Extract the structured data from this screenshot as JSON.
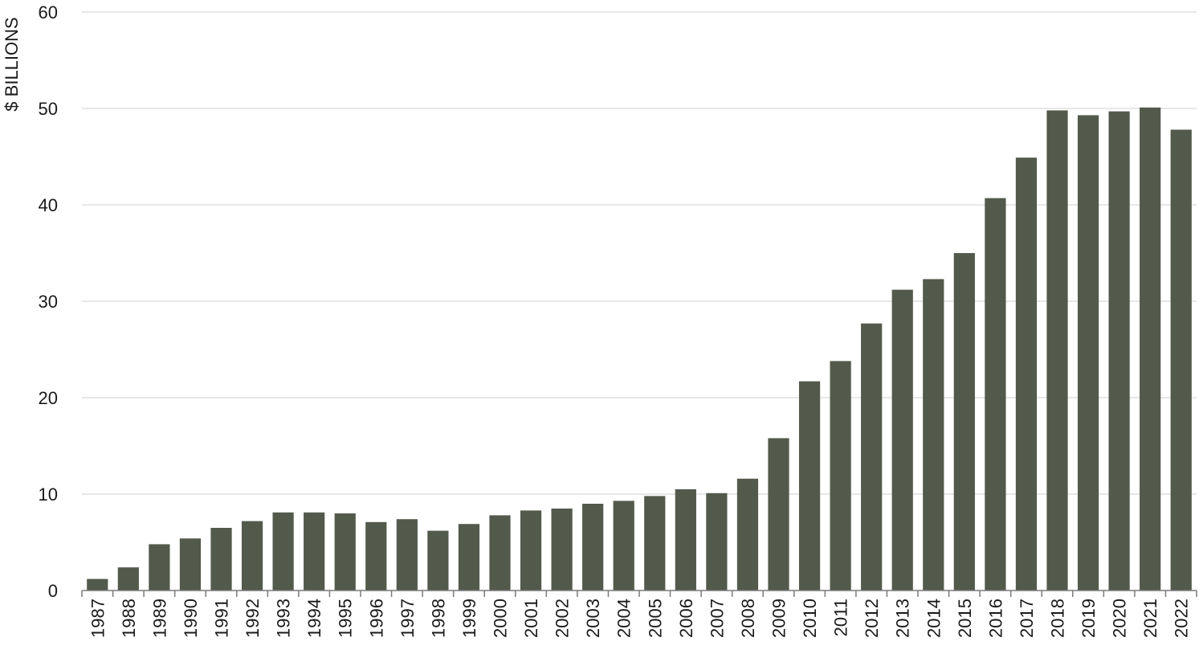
{
  "chart_data": {
    "type": "bar",
    "title": "",
    "xlabel": "",
    "ylabel": "$ BILLIONS",
    "ylim": [
      0,
      60
    ],
    "yticks": [
      0,
      10,
      20,
      30,
      40,
      50,
      60
    ],
    "grid": true,
    "bar_color": "#535a4c",
    "grid_color": "#cfcfcf",
    "axis_color": "#7a7a7a",
    "categories": [
      "1987",
      "1988",
      "1989",
      "1990",
      "1991",
      "1992",
      "1993",
      "1994",
      "1995",
      "1996",
      "1997",
      "1998",
      "1999",
      "2000",
      "2001",
      "2002",
      "2003",
      "2004",
      "2005",
      "2006",
      "2007",
      "2008",
      "2009",
      "2010",
      "2011",
      "2012",
      "2013",
      "2014",
      "2015",
      "2016",
      "2017",
      "2018",
      "2019",
      "2020",
      "2021",
      "2022"
    ],
    "values": [
      1.2,
      2.4,
      4.8,
      5.4,
      6.5,
      7.2,
      8.1,
      8.1,
      8.0,
      7.1,
      7.4,
      6.2,
      6.9,
      7.8,
      8.3,
      8.5,
      9.0,
      9.3,
      9.8,
      10.5,
      10.1,
      11.6,
      15.8,
      21.7,
      23.8,
      27.7,
      31.2,
      32.3,
      35.0,
      40.7,
      44.9,
      49.8,
      49.3,
      49.7,
      50.1,
      47.8
    ]
  }
}
